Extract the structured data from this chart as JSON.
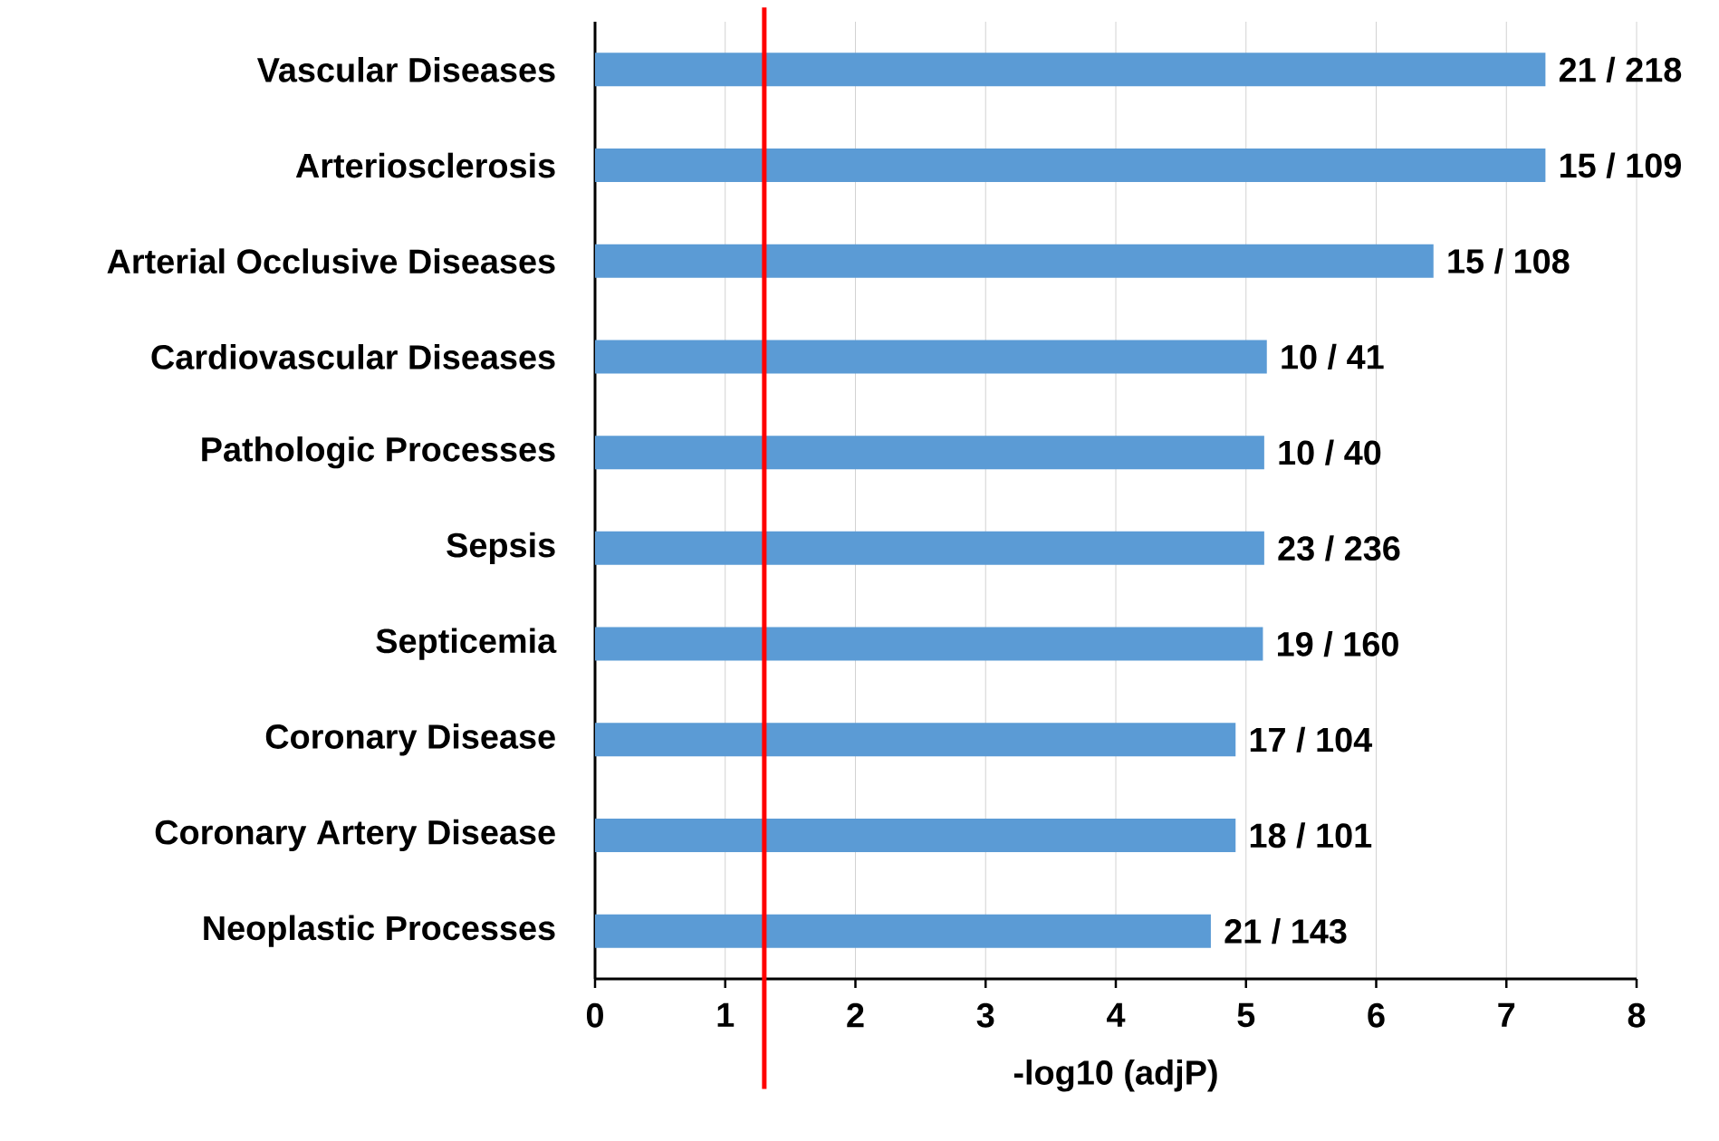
{
  "chart_data": {
    "type": "bar",
    "orientation": "horizontal",
    "xlabel": "-log10 (adjP)",
    "categories": [
      "Vascular Diseases",
      "Arteriosclerosis",
      "Arterial Occlusive Diseases",
      "Cardiovascular Diseases",
      "Pathologic Processes",
      "Sepsis",
      "Septicemia",
      "Coronary Disease",
      "Coronary Artery Disease",
      "Neoplastic Processes"
    ],
    "values": [
      7.3,
      7.3,
      6.44,
      5.16,
      5.14,
      5.14,
      5.13,
      4.92,
      4.92,
      4.73
    ],
    "annotations": [
      {
        "text": "21 / 218",
        "x": 7.3,
        "y": "Vascular Diseases"
      },
      {
        "text": "15 / 109",
        "x": 7.3,
        "y": "Arteriosclerosis"
      },
      {
        "text": "15 / 108",
        "x": 6.44,
        "y": "Arterial Occlusive Diseases"
      },
      {
        "text": "10 / 41",
        "x": 5.16,
        "y": "Cardiovascular Diseases"
      },
      {
        "text": "10 / 40",
        "x": 5.14,
        "y": "Pathologic Processes"
      },
      {
        "text": "23 / 236",
        "x": 5.14,
        "y": "Sepsis"
      },
      {
        "text": "19 / 160",
        "x": 5.13,
        "y": "Septicemia"
      },
      {
        "text": "17 / 104",
        "x": 4.92,
        "y": "Coronary Disease"
      },
      {
        "text": "18 / 101",
        "x": 4.92,
        "y": "Coronary Artery Disease"
      },
      {
        "text": "21 / 143",
        "x": 4.73,
        "y": "Neoplastic Processes"
      }
    ],
    "color": "#5b9bd5",
    "xlim": [
      0,
      8
    ],
    "xticks": [
      0,
      1,
      2,
      3,
      4,
      5,
      6,
      7,
      8
    ],
    "grid": "x",
    "ref_lines": [
      {
        "axis": "x",
        "value": 1.3,
        "color": "#ff0000"
      }
    ]
  }
}
